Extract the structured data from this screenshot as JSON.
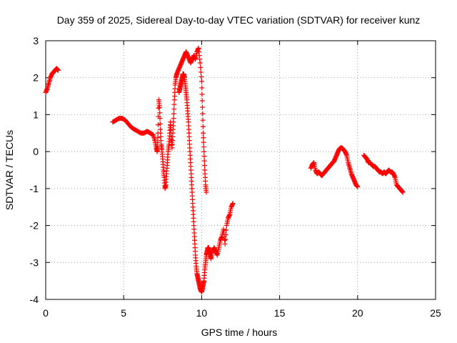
{
  "chart_data": {
    "type": "scatter",
    "title": "Day 359 of 2025, Sidereal Day-to-day VTEC variation (SDTVAR) for receiver kunz",
    "xlabel": "GPS time / hours",
    "ylabel": "SDTVAR / TECUs",
    "xlim": [
      0,
      25
    ],
    "ylim": [
      -4,
      3
    ],
    "xticks": [
      0,
      5,
      10,
      15,
      20,
      25
    ],
    "yticks": [
      -4,
      -3,
      -2,
      -1,
      0,
      1,
      2,
      3
    ],
    "xtick_labels": [
      "0",
      "5",
      "10",
      "15",
      "20",
      "25"
    ],
    "ytick_labels": [
      "-4",
      "-3",
      "-2",
      "-1",
      "0",
      "1",
      "2",
      "3"
    ],
    "grid": true,
    "marker": "plus",
    "color": "#ff0000",
    "series": [
      {
        "x": [
          0.0,
          0.1,
          0.2,
          0.3,
          0.4,
          0.5,
          0.6,
          0.7,
          0.8
        ],
        "y": [
          1.6,
          1.7,
          1.85,
          2.0,
          2.1,
          2.15,
          2.2,
          2.25,
          2.2
        ]
      },
      {
        "x": [
          4.3,
          4.5,
          4.7,
          4.9,
          5.1,
          5.3,
          5.5,
          5.7,
          5.9,
          6.1,
          6.3,
          6.5,
          6.7,
          6.9,
          7.0,
          7.1,
          7.15,
          7.2,
          7.25,
          7.3,
          7.35,
          7.4,
          7.45,
          7.5,
          7.55,
          7.6,
          7.65,
          7.7,
          7.75,
          7.8,
          7.85,
          7.9,
          7.95,
          8.0,
          8.05,
          8.1,
          8.15,
          8.2,
          8.25,
          8.3,
          8.35,
          8.4,
          8.5,
          8.6,
          8.7,
          8.8,
          8.9,
          9.0,
          9.1,
          9.2,
          9.3,
          9.4,
          9.5,
          9.6,
          9.7,
          9.8,
          9.9,
          10.0,
          10.05,
          10.1,
          10.15,
          10.2,
          10.25,
          10.3
        ],
        "y": [
          0.8,
          0.85,
          0.9,
          0.9,
          0.85,
          0.75,
          0.65,
          0.6,
          0.55,
          0.5,
          0.5,
          0.55,
          0.5,
          0.45,
          0.3,
          0.1,
          0.0,
          0.5,
          1.4,
          1.2,
          0.6,
          0.2,
          0.05,
          -0.2,
          -0.5,
          -0.7,
          -1.0,
          -0.9,
          -0.6,
          -0.3,
          0.0,
          0.2,
          0.5,
          0.8,
          0.4,
          0.1,
          0.5,
          0.9,
          1.4,
          1.8,
          2.0,
          2.1,
          2.2,
          2.3,
          2.4,
          2.5,
          2.6,
          2.7,
          2.6,
          2.5,
          2.4,
          2.5,
          2.6,
          2.5,
          2.7,
          2.8,
          2.4,
          1.9,
          1.2,
          0.5,
          0.0,
          -0.5,
          -0.9,
          -1.1
        ]
      },
      {
        "x": [
          8.55,
          8.6,
          8.65,
          8.7,
          8.75,
          8.8,
          8.85,
          8.9,
          8.95,
          9.0,
          9.05,
          9.1,
          9.15,
          9.2,
          9.25,
          9.3,
          9.35,
          9.4,
          9.45,
          9.5,
          9.55,
          9.6,
          9.65,
          9.7,
          9.75,
          9.8,
          9.85,
          9.9,
          9.95,
          10.0,
          10.05,
          10.1,
          10.15,
          10.2,
          10.25,
          10.3,
          10.35,
          10.4,
          10.45,
          10.5,
          10.55,
          10.6,
          10.7,
          10.8,
          10.9,
          11.0,
          11.1,
          11.2,
          11.3,
          11.4,
          11.5,
          11.6,
          11.7,
          11.8,
          11.9,
          12.0
        ],
        "y": [
          1.6,
          1.7,
          1.8,
          1.9,
          2.0,
          2.1,
          2.1,
          2.0,
          1.8,
          1.6,
          1.4,
          1.1,
          0.8,
          0.4,
          0.0,
          -0.4,
          -0.8,
          -1.2,
          -1.6,
          -2.0,
          -2.4,
          -2.8,
          -3.1,
          -3.3,
          -3.4,
          -3.5,
          -3.6,
          -3.7,
          -3.75,
          -3.8,
          -3.7,
          -3.6,
          -3.5,
          -3.2,
          -3.0,
          -2.8,
          -2.7,
          -2.6,
          -2.6,
          -2.7,
          -2.8,
          -2.9,
          -2.7,
          -2.6,
          -2.7,
          -2.8,
          -2.6,
          -2.4,
          -2.3,
          -2.1,
          -2.5,
          -2.0,
          -1.8,
          -1.7,
          -1.5,
          -1.4
        ]
      },
      {
        "x": [
          17.0,
          17.1,
          17.2,
          17.3,
          17.4,
          17.5,
          17.6,
          17.7,
          17.8,
          17.9,
          18.0,
          18.1,
          18.2,
          18.3,
          18.4,
          18.5,
          18.6,
          18.7,
          18.8,
          18.9,
          19.0,
          19.1,
          19.2,
          19.3,
          19.4,
          19.5,
          19.6,
          19.7,
          19.8,
          19.9,
          20.0
        ],
        "y": [
          -0.45,
          -0.35,
          -0.3,
          -0.5,
          -0.6,
          -0.55,
          -0.6,
          -0.65,
          -0.6,
          -0.55,
          -0.5,
          -0.45,
          -0.4,
          -0.35,
          -0.3,
          -0.25,
          -0.15,
          -0.05,
          0.05,
          0.1,
          0.1,
          0.05,
          0.0,
          -0.1,
          -0.3,
          -0.45,
          -0.6,
          -0.7,
          -0.8,
          -0.9,
          -0.95
        ]
      },
      {
        "x": [
          20.4,
          20.5,
          20.6,
          20.7,
          20.8,
          20.9,
          21.0,
          21.1,
          21.2,
          21.3,
          21.4,
          21.5,
          21.6,
          21.7,
          21.8,
          21.9,
          22.0,
          22.1,
          22.2,
          22.3,
          22.4,
          22.5,
          22.6,
          22.7,
          22.8,
          22.9
        ],
        "y": [
          -0.1,
          -0.15,
          -0.2,
          -0.3,
          -0.3,
          -0.35,
          -0.4,
          -0.4,
          -0.45,
          -0.5,
          -0.55,
          -0.55,
          -0.6,
          -0.55,
          -0.6,
          -0.55,
          -0.5,
          -0.55,
          -0.55,
          -0.6,
          -0.7,
          -0.9,
          -0.95,
          -1.0,
          -1.05,
          -1.1
        ]
      }
    ]
  }
}
